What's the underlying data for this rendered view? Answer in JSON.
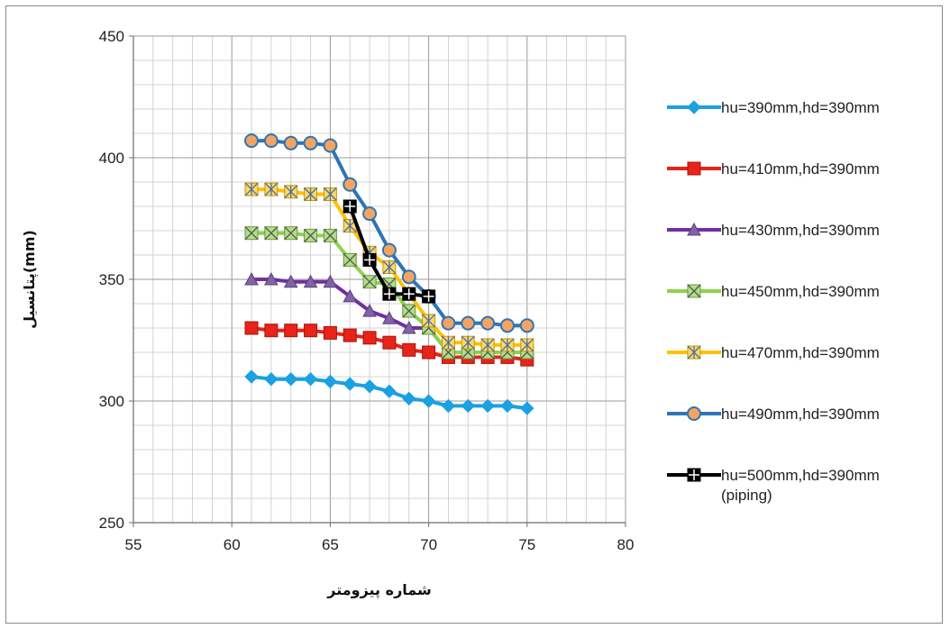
{
  "chart_data": {
    "type": "line",
    "xlabel": "شماره پیزومتر",
    "ylabel": "پتانسیل(mm)",
    "xlim": [
      55,
      80
    ],
    "ylim": [
      250,
      450
    ],
    "xticks": [
      55,
      60,
      65,
      70,
      75,
      80
    ],
    "yticks": [
      250,
      300,
      350,
      400,
      450
    ],
    "grid": "on (major and minor)",
    "legend_position": "right",
    "series": [
      {
        "name": "hu=390mm,hd=390mm",
        "color": "#1ba1e2",
        "marker": "diamond",
        "x": [
          61,
          62,
          63,
          64,
          65,
          66,
          67,
          68,
          69,
          70,
          71,
          72,
          73,
          74,
          75
        ],
        "y": [
          310,
          309,
          309,
          309,
          308,
          307,
          306,
          304,
          301,
          300,
          298,
          298,
          298,
          298,
          297
        ]
      },
      {
        "name": "hu=410mm,hd=390mm",
        "color": "#e8231a",
        "marker": "square",
        "x": [
          61,
          62,
          63,
          64,
          65,
          66,
          67,
          68,
          69,
          70,
          71,
          72,
          73,
          74,
          75
        ],
        "y": [
          330,
          329,
          329,
          329,
          328,
          327,
          326,
          324,
          321,
          320,
          318,
          318,
          318,
          318,
          317
        ]
      },
      {
        "name": "hu=430mm,hd=390mm",
        "color": "#7030a0",
        "marker": "triangle",
        "x": [
          61,
          62,
          63,
          64,
          65,
          66,
          67,
          68,
          69,
          70,
          71,
          72,
          73,
          74,
          75
        ],
        "y": [
          350,
          350,
          349,
          349,
          349,
          343,
          337,
          334,
          330,
          330,
          320,
          320,
          320,
          320,
          320
        ]
      },
      {
        "name": "hu=450mm,hd=390mm",
        "color": "#8ed14f",
        "marker": "x-square",
        "x": [
          61,
          62,
          63,
          64,
          65,
          66,
          67,
          68,
          69,
          70,
          71,
          72,
          73,
          74,
          75
        ],
        "y": [
          369,
          369,
          369,
          368,
          368,
          358,
          349,
          348,
          337,
          330,
          320,
          320,
          320,
          320,
          320
        ]
      },
      {
        "name": "hu=470mm,hd=390mm",
        "color": "#ffc000",
        "marker": "asterisk-square",
        "x": [
          61,
          62,
          63,
          64,
          65,
          66,
          67,
          68,
          69,
          70,
          71,
          72,
          73,
          74,
          75
        ],
        "y": [
          387,
          387,
          386,
          385,
          385,
          372,
          361,
          355,
          344,
          333,
          324,
          324,
          323,
          323,
          323
        ]
      },
      {
        "name": "hu=490mm,hd=390mm",
        "color": "#2e75b6",
        "marker": "circle",
        "x": [
          61,
          62,
          63,
          64,
          65,
          66,
          67,
          68,
          69,
          70,
          71,
          72,
          73,
          74,
          75
        ],
        "y": [
          407,
          407,
          406,
          406,
          405,
          389,
          377,
          362,
          351,
          343,
          332,
          332,
          332,
          331,
          331
        ]
      },
      {
        "name": "hu=500mm,hd=390mm (piping)",
        "color": "#000000",
        "marker": "plus-square",
        "x": [
          66,
          67,
          68,
          69,
          70
        ],
        "y": [
          380,
          358,
          344,
          344,
          343
        ]
      }
    ]
  },
  "legend_lines": [
    [
      "hu=390mm,hd=390mm"
    ],
    [
      "hu=410mm,hd=390mm"
    ],
    [
      "hu=430mm,hd=390mm"
    ],
    [
      "hu=450mm,hd=390mm"
    ],
    [
      "hu=470mm,hd=390mm"
    ],
    [
      "hu=490mm,hd=390mm"
    ],
    [
      "hu=500mm,hd=390mm",
      "(piping)"
    ]
  ]
}
